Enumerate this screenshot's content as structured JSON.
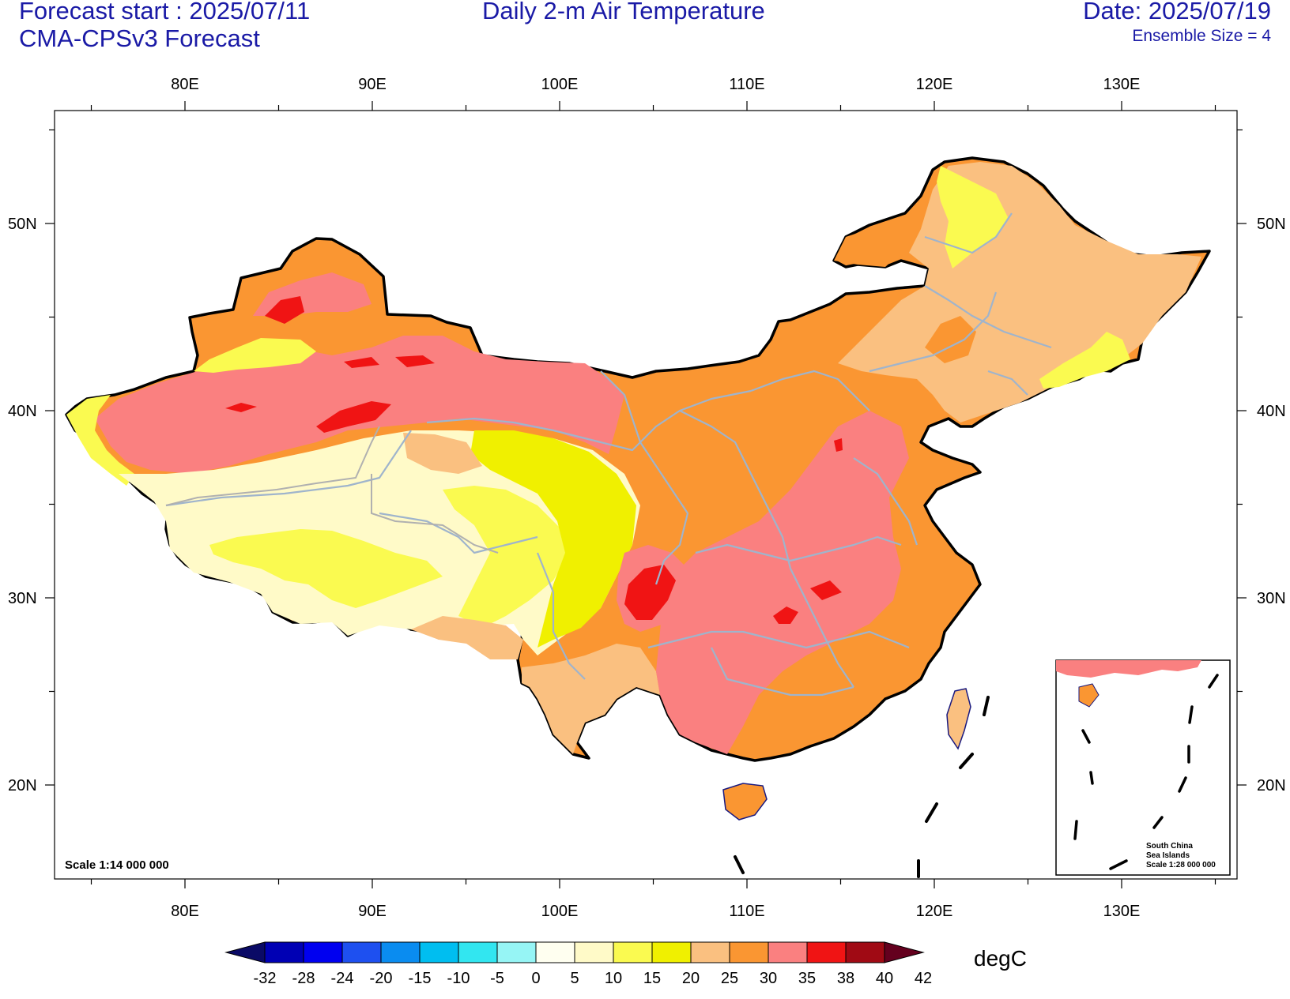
{
  "header": {
    "forecast_start": "Forecast start : 2025/07/11",
    "model": "CMA-CPSv3 Forecast",
    "title": "Daily 2-m Air Temperature",
    "date": "Date: 2025/07/19",
    "ensemble": "Ensemble Size = 4"
  },
  "axes": {
    "lon_labels": [
      "80E",
      "90E",
      "100E",
      "110E",
      "120E",
      "130E"
    ],
    "lat_labels": [
      "50N",
      "40N",
      "30N",
      "20N"
    ]
  },
  "scale_note": "Scale 1:14 000 000",
  "inset": {
    "line1": "South China",
    "line2": "Sea Islands",
    "line3": "Scale 1:28 000 000"
  },
  "colorbar": {
    "unit": "degC",
    "levels": [
      "-32",
      "-28",
      "-24",
      "-20",
      "-15",
      "-10",
      "-5",
      "0",
      "5",
      "10",
      "15",
      "20",
      "25",
      "30",
      "35",
      "38",
      "40",
      "42"
    ],
    "colors": [
      "#0a0a66",
      "#0000b4",
      "#0000f0",
      "#1e50f0",
      "#0a8cf0",
      "#00bef0",
      "#32e6f0",
      "#96f5f5",
      "#fffff0",
      "#fffac8",
      "#fafa50",
      "#f0f000",
      "#fac080",
      "#fa9632",
      "#fa8080",
      "#f01414",
      "#a00a14",
      "#64001e"
    ]
  },
  "colors": {
    "title_text": "#1a1aa6",
    "border": "#000000",
    "province_lines": "#9fb4cc",
    "coast": "#1a1a80"
  }
}
